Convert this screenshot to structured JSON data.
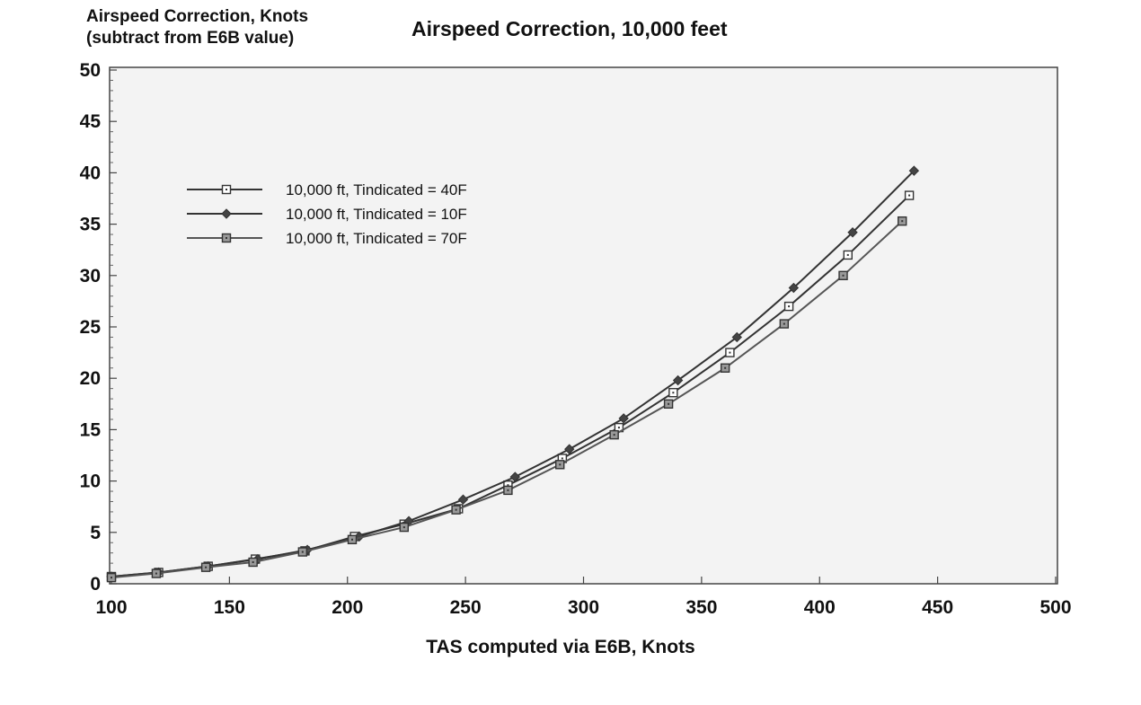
{
  "chart_data": {
    "type": "line",
    "title": "Airspeed Correction, 10,000 feet",
    "ylabel_lines": [
      "Airspeed Correction, Knots",
      "(subtract from E6B value)"
    ],
    "xlabel": "TAS computed via E6B, Knots",
    "xlim": [
      100,
      500
    ],
    "ylim": [
      0,
      50
    ],
    "xticks": [
      100,
      150,
      200,
      250,
      300,
      350,
      400,
      450,
      500
    ],
    "yticks": [
      0,
      5,
      10,
      15,
      20,
      25,
      30,
      35,
      40,
      45,
      50
    ],
    "grid": false,
    "legend_position": "upper-left",
    "series": [
      {
        "name": "10,000 ft, Tindicated = 40F",
        "marker": "open-square",
        "color": "#333333",
        "x": [
          100,
          120,
          141,
          161,
          182,
          203,
          224,
          247,
          268,
          291,
          315,
          338,
          362,
          387,
          412,
          438
        ],
        "y": [
          0.7,
          1.1,
          1.7,
          2.4,
          3.2,
          4.6,
          5.8,
          7.3,
          9.6,
          12.2,
          15.2,
          18.6,
          22.5,
          27.0,
          32.0,
          37.8
        ]
      },
      {
        "name": "10,000 ft, Tindicated = 10F",
        "marker": "diamond",
        "color": "#333333",
        "x": [
          100,
          120,
          141,
          162,
          183,
          205,
          226,
          249,
          271,
          294,
          317,
          340,
          365,
          389,
          414,
          440
        ],
        "y": [
          0.7,
          1.1,
          1.7,
          2.4,
          3.3,
          4.6,
          6.1,
          8.2,
          10.4,
          13.1,
          16.1,
          19.8,
          24.0,
          28.8,
          34.2,
          40.2
        ]
      },
      {
        "name": "10,000 ft, Tindicated = 70F",
        "marker": "filled-square",
        "color": "#555555",
        "x": [
          100,
          119,
          140,
          160,
          181,
          202,
          224,
          246,
          268,
          290,
          313,
          336,
          360,
          385,
          410,
          435
        ],
        "y": [
          0.6,
          1.0,
          1.6,
          2.1,
          3.1,
          4.3,
          5.5,
          7.2,
          9.1,
          11.6,
          14.5,
          17.5,
          21.0,
          25.3,
          30.0,
          35.3
        ]
      }
    ]
  }
}
